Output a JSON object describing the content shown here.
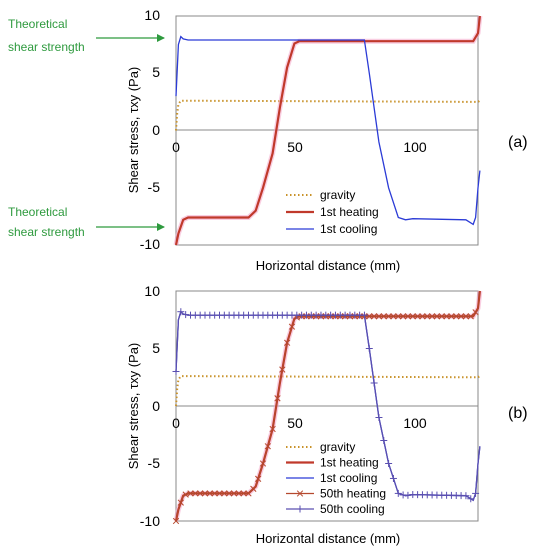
{
  "chart_data": [
    {
      "type": "line",
      "panel_label": "(a)",
      "xlabel": "Horizontal distance (mm)",
      "ylabel": "Shear stress, τxy (Pa)",
      "xlim": [
        0,
        125
      ],
      "ylim": [
        -10,
        10
      ],
      "x_ticks": [
        0,
        50,
        100
      ],
      "y_ticks": [
        -10,
        -5,
        0,
        5,
        10
      ],
      "grid": false,
      "legend_position": "bottom-center",
      "annotations": [
        {
          "text_lines": [
            "Theoretical",
            "shear strength"
          ],
          "target_y": 8
        },
        {
          "text_lines": [
            "Theoretical",
            "shear strength"
          ],
          "target_y": -8
        }
      ],
      "series": [
        {
          "name": "gravity",
          "color": "#c8922a",
          "style": "dotted",
          "marker": "none",
          "x": [
            0,
            0.5,
            1,
            2,
            125,
            126
          ],
          "y": [
            0,
            1.5,
            2.3,
            2.6,
            2.5,
            2.6
          ]
        },
        {
          "name": "1st heating",
          "color": "#c0392b",
          "style": "solid",
          "marker": "none",
          "x": [
            0,
            1,
            3,
            5,
            30,
            33,
            36,
            40,
            43,
            46,
            49,
            51,
            123,
            125,
            126
          ],
          "y": [
            -10,
            -9,
            -7.8,
            -7.6,
            -7.6,
            -7,
            -5,
            -2,
            2,
            5.5,
            7.6,
            7.8,
            7.8,
            8.5,
            10
          ]
        },
        {
          "name": "1st cooling",
          "color": "#2b3bd6",
          "style": "solid",
          "marker": "none",
          "x": [
            0,
            1,
            2,
            3,
            5,
            78,
            80,
            84,
            88,
            92,
            95,
            98,
            120,
            123,
            124,
            125,
            126
          ],
          "y": [
            3,
            7.5,
            8.2,
            8,
            7.9,
            7.9,
            5,
            -1,
            -5,
            -7.6,
            -7.8,
            -7.7,
            -7.8,
            -8.2,
            -7.6,
            -5,
            -3.5
          ]
        }
      ]
    },
    {
      "type": "line",
      "panel_label": "(b)",
      "xlabel": "Horizontal distance (mm)",
      "ylabel": "Shear stress, τxy (Pa)",
      "xlim": [
        0,
        125
      ],
      "ylim": [
        -10,
        10
      ],
      "x_ticks": [
        0,
        50,
        100
      ],
      "y_ticks": [
        -10,
        -5,
        0,
        5,
        10
      ],
      "grid": false,
      "legend_position": "bottom-center",
      "series": [
        {
          "name": "gravity",
          "color": "#c8922a",
          "style": "dotted",
          "marker": "none",
          "x": [
            0,
            0.5,
            1,
            2,
            125,
            126
          ],
          "y": [
            0,
            1.5,
            2.3,
            2.6,
            2.5,
            2.6
          ]
        },
        {
          "name": "1st heating",
          "color": "#c0392b",
          "style": "solid",
          "marker": "none",
          "x": [
            0,
            1,
            3,
            5,
            30,
            33,
            36,
            40,
            43,
            46,
            49,
            51,
            123,
            125,
            126
          ],
          "y": [
            -10,
            -9,
            -7.8,
            -7.6,
            -7.6,
            -7,
            -5,
            -2,
            2,
            5.5,
            7.6,
            7.8,
            7.8,
            8.5,
            10
          ]
        },
        {
          "name": "1st cooling",
          "color": "#2b3bd6",
          "style": "solid",
          "marker": "none",
          "x": [
            0,
            1,
            2,
            3,
            5,
            78,
            80,
            84,
            88,
            92,
            95,
            98,
            120,
            123,
            124,
            125,
            126
          ],
          "y": [
            3,
            7.5,
            8.2,
            8,
            7.9,
            7.9,
            5,
            -1,
            -5,
            -7.6,
            -7.8,
            -7.7,
            -7.8,
            -8.2,
            -7.6,
            -5,
            -3.5
          ]
        },
        {
          "name": "50th heating",
          "color": "#b5482e",
          "style": "solid",
          "marker": "x",
          "x": [
            0,
            1,
            3,
            5,
            30,
            33,
            36,
            40,
            43,
            46,
            49,
            51,
            123,
            125,
            126
          ],
          "y": [
            -10,
            -9,
            -7.8,
            -7.6,
            -7.6,
            -7,
            -5,
            -2,
            2,
            5.5,
            7.6,
            7.8,
            7.8,
            8.5,
            10
          ]
        },
        {
          "name": "50th cooling",
          "color": "#5a4fb0",
          "style": "solid",
          "marker": "+",
          "x": [
            0,
            1,
            2,
            3,
            5,
            78,
            80,
            84,
            88,
            92,
            95,
            98,
            120,
            123,
            124,
            125,
            126
          ],
          "y": [
            3,
            7.5,
            8.2,
            8,
            7.9,
            7.9,
            5,
            -1,
            -5,
            -7.6,
            -7.8,
            -7.7,
            -7.8,
            -8.2,
            -7.6,
            -5,
            -3.5
          ]
        }
      ]
    }
  ]
}
